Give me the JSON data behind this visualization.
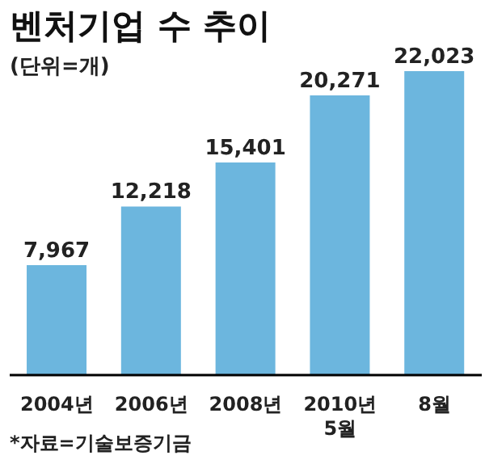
{
  "chart_data": {
    "type": "bar",
    "title": "벤처기업 수 추이",
    "subtitle": "(단위=개)",
    "categories": [
      "2004년",
      "2006년",
      "2008년",
      "2010년 5월",
      "8월"
    ],
    "values": [
      7967,
      12218,
      15401,
      20271,
      22023
    ],
    "value_labels": [
      "7,967",
      "12,218",
      "15,401",
      "20,271",
      "22,023"
    ],
    "color": "#6cb6de",
    "grid": false,
    "legend": false,
    "annotations": [
      "*자료=기술보증기금"
    ]
  }
}
